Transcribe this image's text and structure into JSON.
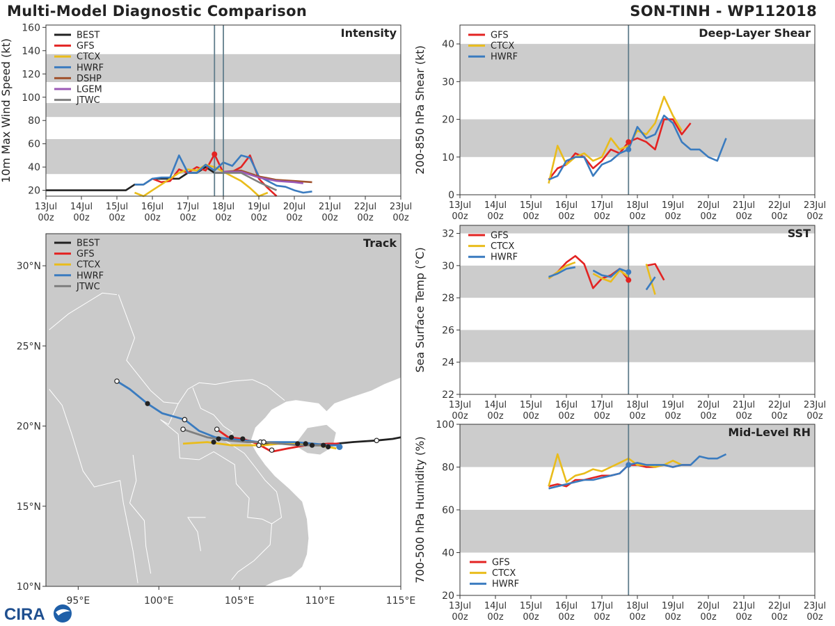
{
  "title_left": "Multi-Model Diagnostic Comparison",
  "title_right": "SON-TINH - WP112018",
  "logo_text": "CIRA",
  "colors": {
    "BEST": "#222222",
    "GFS": "#e32322",
    "CTCX": "#e9bc1b",
    "HWRF": "#3a7bbf",
    "DSHP": "#a0522d",
    "LGEM": "#9b59b6",
    "JTWC": "#7f7f7f",
    "band": "#cccccc",
    "land": "#cacaca",
    "sea": "#ffffff",
    "vline": "#607d8b"
  },
  "time_ticks": [
    "13Jul\n00z",
    "14Jul\n00z",
    "15Jul\n00z",
    "16Jul\n00z",
    "17Jul\n00z",
    "18Jul\n00z",
    "19Jul\n00z",
    "20Jul\n00z",
    "21Jul\n00z",
    "22Jul\n00z",
    "23Jul\n00z"
  ],
  "chart_data": [
    {
      "id": "intensity",
      "type": "line",
      "title": "Intensity",
      "ylabel": "10m Max Wind Speed (kt)",
      "xlim": [
        0,
        10
      ],
      "ylim": [
        15,
        162
      ],
      "yticks": [
        20,
        40,
        60,
        80,
        100,
        120,
        140,
        160
      ],
      "bands": [
        [
          34,
          64
        ],
        [
          83,
          95
        ],
        [
          113,
          137
        ]
      ],
      "vlines": [
        4.75,
        5.0
      ],
      "legend": [
        "BEST",
        "GFS",
        "CTCX",
        "HWRF",
        "DSHP",
        "LGEM",
        "JTWC"
      ],
      "series": [
        {
          "name": "BEST",
          "x": [
            0,
            0.5,
            1,
            1.5,
            2,
            2.25,
            2.5,
            2.75,
            3,
            3.25,
            3.5,
            3.75,
            4,
            4.25,
            4.5,
            4.75,
            5
          ],
          "y": [
            20,
            20,
            20,
            20,
            20,
            20,
            25,
            25,
            30,
            30,
            30,
            30,
            35,
            35,
            40,
            35,
            35
          ]
        },
        {
          "name": "GFS",
          "x": [
            3,
            3.25,
            3.5,
            3.75,
            4,
            4.25,
            4.5,
            4.75,
            5,
            5.25,
            5.5,
            5.75,
            6,
            6.25,
            6.5
          ],
          "y": [
            30,
            27,
            28,
            38,
            35,
            40,
            37,
            51,
            35,
            36,
            40,
            50,
            30,
            22,
            15
          ]
        },
        {
          "name": "CTCX",
          "x": [
            2.5,
            2.75,
            3,
            3.25,
            3.5,
            3.75,
            4,
            4.25,
            4.5,
            4.75,
            5,
            5.25,
            5.5,
            5.75,
            6,
            6.25
          ],
          "y": [
            18,
            15,
            20,
            25,
            30,
            35,
            38,
            37,
            42,
            40,
            36,
            32,
            28,
            22,
            15,
            18
          ]
        },
        {
          "name": "HWRF",
          "x": [
            2.5,
            2.75,
            3,
            3.25,
            3.5,
            3.75,
            4,
            4.25,
            4.5,
            4.75,
            5,
            5.25,
            5.5,
            5.75,
            6,
            6.25,
            6.5,
            6.75,
            7,
            7.25,
            7.5
          ],
          "y": [
            25,
            25,
            30,
            31,
            31,
            50,
            35,
            35,
            42,
            37,
            44,
            41,
            50,
            48,
            32,
            28,
            24,
            23,
            20,
            18,
            19
          ]
        },
        {
          "name": "DSHP",
          "x": [
            5,
            5.5,
            6,
            6.5,
            7,
            7.5
          ],
          "y": [
            36,
            37,
            32,
            29,
            28,
            27
          ]
        },
        {
          "name": "LGEM",
          "x": [
            5,
            5.5,
            6,
            6.5,
            7,
            7.25
          ],
          "y": [
            36,
            36,
            31,
            28,
            27,
            26
          ]
        },
        {
          "name": "JTWC",
          "x": [
            4.75,
            5,
            5.5,
            6,
            6.5
          ],
          "y": [
            35,
            35,
            35,
            27,
            20
          ]
        }
      ],
      "markers": [
        {
          "series": "GFS",
          "x": 4.75,
          "y": 51
        }
      ]
    },
    {
      "id": "shear",
      "type": "line",
      "title": "Deep-Layer Shear",
      "ylabel": "200-850 hPa Shear (kt)",
      "xlim": [
        0,
        10
      ],
      "ylim": [
        0,
        45
      ],
      "yticks": [
        0,
        10,
        20,
        30,
        40
      ],
      "bands": [
        [
          10,
          20
        ],
        [
          30,
          40
        ]
      ],
      "vlines": [
        4.75
      ],
      "legend": [
        "GFS",
        "CTCX",
        "HWRF"
      ],
      "series": [
        {
          "name": "GFS",
          "x": [
            2.5,
            2.75,
            3,
            3.25,
            3.5,
            3.75,
            4,
            4.25,
            4.5,
            4.75,
            5,
            5.25,
            5.5,
            5.75,
            6,
            6.25,
            6.5
          ],
          "y": [
            4,
            7,
            8,
            11,
            10,
            7,
            9,
            12,
            11,
            14,
            15,
            14,
            12,
            20,
            20,
            16,
            19
          ]
        },
        {
          "name": "CTCX",
          "x": [
            2.5,
            2.75,
            3,
            3.25,
            3.5,
            3.75,
            4,
            4.25,
            4.5,
            4.75,
            5,
            5.25,
            5.5,
            5.75,
            6,
            6.25
          ],
          "y": [
            3,
            13,
            8,
            10,
            11,
            9,
            10,
            15,
            12,
            13,
            17,
            16,
            19,
            26,
            21,
            17
          ]
        },
        {
          "name": "HWRF",
          "x": [
            2.5,
            2.75,
            3,
            3.25,
            3.5,
            3.75,
            4,
            4.25,
            4.5,
            4.75,
            5,
            5.25,
            5.5,
            5.75,
            6,
            6.25,
            6.5,
            6.75,
            7,
            7.25,
            7.5
          ],
          "y": [
            4,
            5,
            9,
            10,
            10,
            5,
            8,
            9,
            11,
            12,
            18,
            15,
            16,
            21,
            19,
            14,
            12,
            12,
            10,
            9,
            15
          ]
        }
      ],
      "markers": [
        {
          "series": "GFS",
          "x": 4.75,
          "y": 14
        },
        {
          "series": "HWRF",
          "x": 4.75,
          "y": 12
        }
      ]
    },
    {
      "id": "sst",
      "type": "line",
      "title": "SST",
      "ylabel": "Sea Surface Temp (°C)",
      "xlim": [
        0,
        10
      ],
      "ylim": [
        22,
        32.5
      ],
      "yticks": [
        22,
        24,
        26,
        28,
        30,
        32
      ],
      "bands": [
        [
          24,
          26
        ],
        [
          28,
          30
        ],
        [
          32,
          34
        ]
      ],
      "vlines": [
        4.75
      ],
      "legend": [
        "GFS",
        "CTCX",
        "HWRF"
      ],
      "series": [
        {
          "name": "GFS",
          "x": [
            2.5,
            2.75,
            3,
            3.25,
            3.5,
            3.75,
            4,
            4.25,
            4.5,
            4.75
          ],
          "y": [
            29.2,
            29.6,
            30.2,
            30.6,
            30.1,
            28.6,
            29.2,
            29.4,
            29.8,
            29.1
          ]
        },
        {
          "name": "GFS",
          "x": [
            5.25,
            5.5,
            5.75
          ],
          "y": [
            30.0,
            30.1,
            29.1
          ]
        },
        {
          "name": "CTCX",
          "x": [
            2.5,
            2.75,
            3,
            3.25
          ],
          "y": [
            29.2,
            29.6,
            30.0,
            30.2
          ]
        },
        {
          "name": "CTCX",
          "x": [
            3.75,
            4,
            4.25,
            4.5,
            4.75
          ],
          "y": [
            29.5,
            29.2,
            29.0,
            29.7,
            29.3
          ]
        },
        {
          "name": "CTCX",
          "x": [
            5.25,
            5.5
          ],
          "y": [
            30.1,
            28.2
          ]
        },
        {
          "name": "HWRF",
          "x": [
            2.5,
            2.75,
            3,
            3.25
          ],
          "y": [
            29.3,
            29.5,
            29.8,
            29.9
          ]
        },
        {
          "name": "HWRF",
          "x": [
            3.75,
            4,
            4.25,
            4.5,
            4.75
          ],
          "y": [
            29.7,
            29.4,
            29.3,
            29.8,
            29.6
          ]
        },
        {
          "name": "HWRF",
          "x": [
            5.25,
            5.5
          ],
          "y": [
            28.5,
            29.3
          ]
        }
      ],
      "markers": [
        {
          "series": "GFS",
          "x": 4.75,
          "y": 29.1
        },
        {
          "series": "HWRF",
          "x": 4.75,
          "y": 29.6
        }
      ]
    },
    {
      "id": "rh",
      "type": "line",
      "title": "Mid-Level RH",
      "ylabel": "700-500 hPa Humidity (%)",
      "xlim": [
        0,
        10
      ],
      "ylim": [
        20,
        100
      ],
      "yticks": [
        20,
        40,
        60,
        80,
        100
      ],
      "bands": [
        [
          40,
          60
        ],
        [
          80,
          100
        ]
      ],
      "vlines": [
        4.75
      ],
      "legend": [
        "GFS",
        "CTCX",
        "HWRF"
      ],
      "series": [
        {
          "name": "GFS",
          "x": [
            2.5,
            2.75,
            3,
            3.25,
            3.5,
            3.75,
            4,
            4.25,
            4.5,
            4.75,
            5,
            5.25,
            5.5,
            5.75,
            6,
            6.25,
            6.5
          ],
          "y": [
            71,
            72,
            71,
            74,
            74,
            75,
            76,
            76,
            77,
            81,
            81,
            80,
            80,
            81,
            80,
            81,
            81
          ]
        },
        {
          "name": "CTCX",
          "x": [
            2.5,
            2.75,
            3,
            3.25,
            3.5,
            3.75,
            4,
            4.25,
            4.5,
            4.75,
            5,
            5.25,
            5.5,
            5.75,
            6,
            6.25
          ],
          "y": [
            71,
            86,
            73,
            76,
            77,
            79,
            78,
            80,
            82,
            84,
            81,
            81,
            80,
            81,
            83,
            81
          ]
        },
        {
          "name": "HWRF",
          "x": [
            2.5,
            2.75,
            3,
            3.25,
            3.5,
            3.75,
            4,
            4.25,
            4.5,
            4.75,
            5,
            5.25,
            5.5,
            5.75,
            6,
            6.25,
            6.5,
            6.75,
            7,
            7.25,
            7.5
          ],
          "y": [
            70,
            71,
            72,
            73,
            74,
            74,
            75,
            76,
            77,
            81,
            82,
            81,
            81,
            81,
            80,
            81,
            81,
            85,
            84,
            84,
            86
          ]
        }
      ],
      "markers": [
        {
          "series": "GFS",
          "x": 4.75,
          "y": 81
        },
        {
          "series": "HWRF",
          "x": 4.75,
          "y": 81
        }
      ]
    },
    {
      "id": "track",
      "type": "scatter",
      "title": "Track",
      "xlim": [
        93,
        115
      ],
      "ylim": [
        10,
        32
      ],
      "xticks": [
        "95°E",
        "100°E",
        "105°E",
        "110°E",
        "115°E"
      ],
      "xtick_values": [
        95,
        100,
        105,
        110,
        115
      ],
      "yticks": [
        "10°N",
        "15°N",
        "20°N",
        "25°N",
        "30°N"
      ],
      "ytick_values": [
        10,
        15,
        20,
        25,
        30
      ],
      "legend": [
        "BEST",
        "GFS",
        "CTCX",
        "HWRF",
        "JTWC"
      ],
      "series": [
        {
          "name": "BEST",
          "lon": [
            104.5,
            105,
            106,
            107,
            108,
            109,
            109.5,
            110,
            111,
            112,
            113.5,
            114.5,
            115
          ],
          "lat": [
            19.2,
            19.2,
            19.0,
            18.9,
            18.9,
            18.9,
            18.8,
            18.8,
            18.9,
            19.0,
            19.1,
            19.2,
            19.3
          ]
        },
        {
          "name": "GFS",
          "lon": [
            103.6,
            104.3,
            105.2,
            106.1,
            107,
            108,
            109.1,
            110.5,
            111.2
          ],
          "lat": [
            19.8,
            19.3,
            19.2,
            18.9,
            18.4,
            18.6,
            18.8,
            18.9,
            18.9
          ]
        },
        {
          "name": "CTCX",
          "lon": [
            101.5,
            103,
            104.5,
            105.5,
            106.5,
            107.5,
            108.6,
            109.3,
            110.5,
            111
          ],
          "lat": [
            18.9,
            19.0,
            18.8,
            18.8,
            18.8,
            18.9,
            18.9,
            18.9,
            18.7,
            18.6
          ]
        },
        {
          "name": "HWRF",
          "lon": [
            97.4,
            98.2,
            99.3,
            100.2,
            101.6,
            102.5,
            103.5,
            104.4,
            105.3,
            106.3,
            107.4,
            108.4,
            109.6,
            110.6,
            111.2
          ],
          "lat": [
            22.8,
            22.3,
            21.4,
            20.8,
            20.4,
            19.7,
            19.3,
            19.2,
            19.1,
            19.0,
            19.0,
            19.0,
            18.9,
            18.8,
            18.8
          ]
        },
        {
          "name": "JTWC",
          "lon": [
            101.5,
            103,
            104.3,
            105.5,
            106.5,
            107.5,
            108.7,
            110.4
          ],
          "lat": [
            19.8,
            19.3,
            19.1,
            19.0,
            19.0,
            18.9,
            18.8,
            18.8
          ]
        }
      ],
      "open_points": [
        [
          97.4,
          22.8
        ],
        [
          101.6,
          20.4
        ],
        [
          101.5,
          19.8
        ],
        [
          103.6,
          19.8
        ],
        [
          106.3,
          19.0
        ],
        [
          106.5,
          19.0
        ],
        [
          106.2,
          18.8
        ],
        [
          107,
          18.5
        ],
        [
          113.5,
          19.1
        ]
      ],
      "filled_points": [
        [
          99.3,
          21.4
        ],
        [
          103.4,
          19.0
        ],
        [
          103.7,
          19.2
        ],
        [
          104.5,
          19.3
        ],
        [
          105.2,
          19.2
        ],
        [
          109.1,
          18.9
        ],
        [
          109.5,
          18.8
        ],
        [
          108.6,
          18.9
        ],
        [
          110.2,
          18.8
        ],
        [
          110.5,
          18.7
        ],
        [
          111.2,
          18.7
        ]
      ]
    }
  ]
}
